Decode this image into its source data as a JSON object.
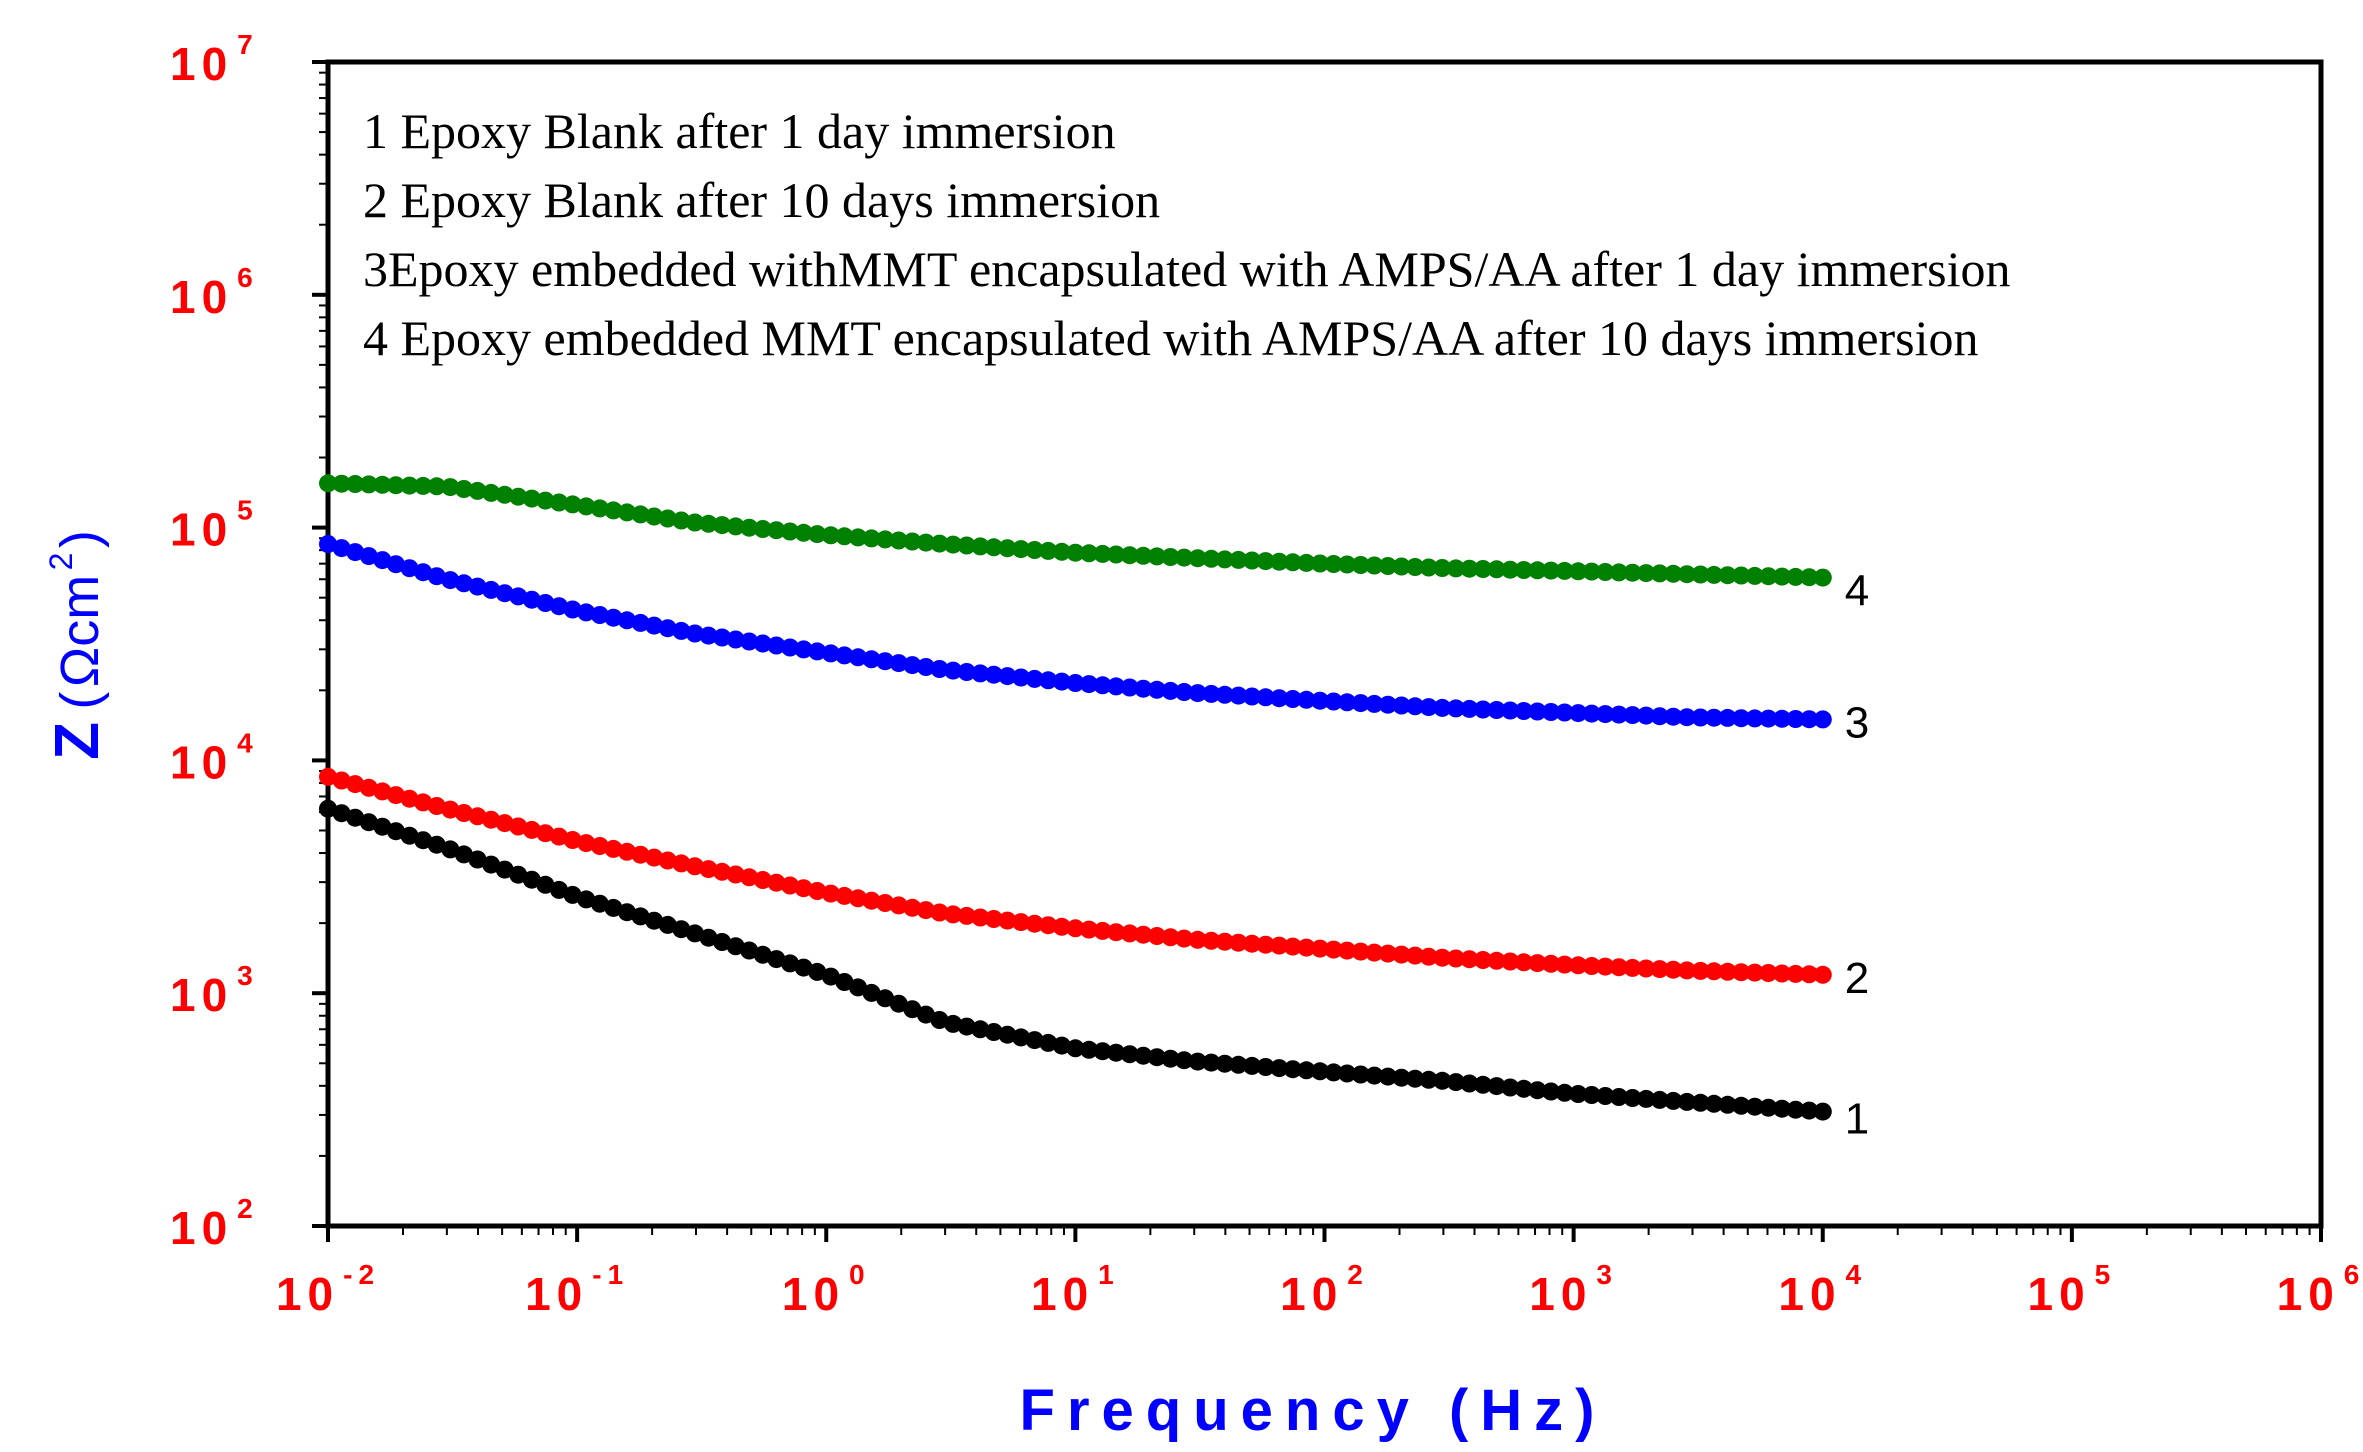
{
  "chart_data": {
    "type": "line",
    "x_scale": "log",
    "y_scale": "log",
    "xlabel": "Frequency (Hz)",
    "ylabel": {
      "prefix": "Z",
      "open_paren": "(",
      "unit": "Ωcm",
      "unit_exponent": "2",
      "close_paren": ")"
    },
    "xlim": [
      0.01,
      1000000
    ],
    "ylim": [
      100,
      10000000
    ],
    "x_ticks": [
      {
        "base": "10",
        "exp": "-2"
      },
      {
        "base": "10",
        "exp": "-1"
      },
      {
        "base": "10",
        "exp": "0"
      },
      {
        "base": "10",
        "exp": "1"
      },
      {
        "base": "10",
        "exp": "2"
      },
      {
        "base": "10",
        "exp": "3"
      },
      {
        "base": "10",
        "exp": "4"
      },
      {
        "base": "10",
        "exp": "5"
      },
      {
        "base": "10",
        "exp": "6"
      }
    ],
    "y_ticks": [
      {
        "base": "10",
        "exp": "2"
      },
      {
        "base": "10",
        "exp": "3"
      },
      {
        "base": "10",
        "exp": "4"
      },
      {
        "base": "10",
        "exp": "5"
      },
      {
        "base": "10",
        "exp": "6"
      },
      {
        "base": "10",
        "exp": "7"
      }
    ],
    "legend": {
      "position": "top-left",
      "entries": [
        "1 Epoxy Blank after 1 day immersion",
        "2 Epoxy Blank after 10 days immersion",
        "3Epoxy embedded withMMT encapsulated with AMPS/AA after 1 day immersion",
        "4 Epoxy embedded MMT encapsulated with AMPS/AA after 10 days immersion"
      ]
    },
    "series": [
      {
        "name": "1",
        "color": "#000000",
        "points": [
          [
            0.01,
            6200
          ],
          [
            0.03,
            4200
          ],
          [
            0.1,
            2600
          ],
          [
            0.3,
            1800
          ],
          [
            1,
            1200
          ],
          [
            3,
            750
          ],
          [
            10,
            580
          ],
          [
            30,
            510
          ],
          [
            100,
            460
          ],
          [
            300,
            420
          ],
          [
            1000,
            370
          ],
          [
            3000,
            340
          ],
          [
            10000,
            310
          ]
        ]
      },
      {
        "name": "2",
        "color": "#ff0000",
        "points": [
          [
            0.01,
            8500
          ],
          [
            0.03,
            6200
          ],
          [
            0.1,
            4500
          ],
          [
            0.3,
            3500
          ],
          [
            1,
            2700
          ],
          [
            3,
            2200
          ],
          [
            10,
            1900
          ],
          [
            30,
            1700
          ],
          [
            100,
            1550
          ],
          [
            300,
            1420
          ],
          [
            1000,
            1320
          ],
          [
            3000,
            1250
          ],
          [
            10000,
            1200
          ]
        ]
      },
      {
        "name": "3",
        "color": "#0000ff",
        "points": [
          [
            0.01,
            85000
          ],
          [
            0.03,
            60000
          ],
          [
            0.1,
            44000
          ],
          [
            0.3,
            35000
          ],
          [
            1,
            29000
          ],
          [
            3,
            24500
          ],
          [
            10,
            21500
          ],
          [
            30,
            19500
          ],
          [
            100,
            18000
          ],
          [
            300,
            16800
          ],
          [
            1000,
            16000
          ],
          [
            3000,
            15300
          ],
          [
            10000,
            15000
          ]
        ]
      },
      {
        "name": "4",
        "color": "#008000",
        "points": [
          [
            0.01,
            155000
          ],
          [
            0.03,
            150000
          ],
          [
            0.1,
            125000
          ],
          [
            0.3,
            105000
          ],
          [
            1,
            93000
          ],
          [
            3,
            85000
          ],
          [
            10,
            78000
          ],
          [
            30,
            74000
          ],
          [
            100,
            70000
          ],
          [
            300,
            67000
          ],
          [
            1000,
            65000
          ],
          [
            3000,
            63000
          ],
          [
            10000,
            61000
          ]
        ]
      }
    ],
    "colors": {
      "tick_labels": "#ff0000",
      "axis_titles": "#0000ff",
      "frame": "#000000"
    }
  }
}
